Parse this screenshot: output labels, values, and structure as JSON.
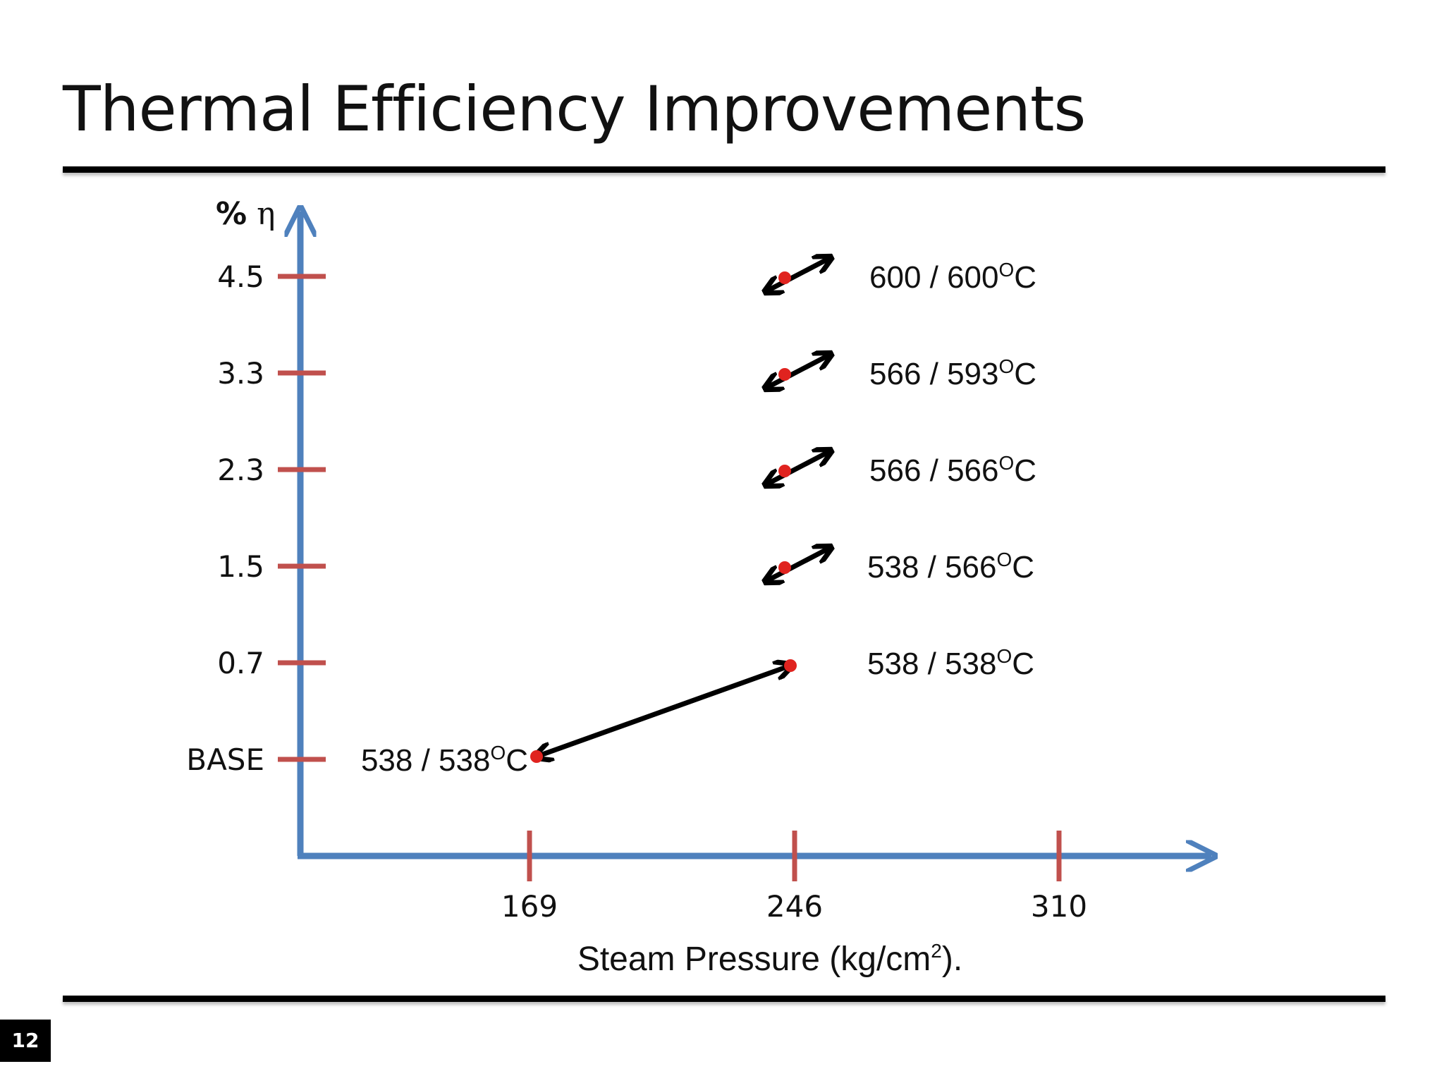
{
  "slide": {
    "title": "Thermal Efficiency Improvements",
    "page_number": "12"
  },
  "colors": {
    "axis": "#4f81bd",
    "tick": "#c0504d",
    "point": "#e0231f",
    "arrow": "#000000"
  },
  "chart_data": {
    "type": "scatter",
    "title": "Thermal Efficiency Improvements",
    "xlabel": "Steam Pressure (kg/cm2).",
    "xlabel_main": "Steam Pressure (kg/cm",
    "xlabel_sup": "2",
    "xlabel_tail": ").",
    "ylabel": "% η",
    "ylabel_pct": "%",
    "ylabel_symbol": "η",
    "x_ticks": [
      "169",
      "246",
      "310"
    ],
    "y_ticks": [
      "BASE",
      "0.7",
      "1.5",
      "2.3",
      "3.3",
      "4.5"
    ],
    "y_ticks_note": "categorical levels, evenly spaced",
    "points": [
      {
        "pressure": "169",
        "efficiency": "BASE",
        "label_main": "538 / 538",
        "label_sup": "O",
        "label_unit": "C",
        "label_side": "left",
        "arrow": "none"
      },
      {
        "pressure": "246",
        "efficiency": "0.7",
        "label_main": "538 / 538",
        "label_sup": "O",
        "label_unit": "C",
        "label_side": "right",
        "arrow": "none"
      },
      {
        "pressure": "246",
        "efficiency": "1.5",
        "label_main": "538 / 566",
        "label_sup": "O",
        "label_unit": "C",
        "label_side": "right",
        "arrow": "double"
      },
      {
        "pressure": "246",
        "efficiency": "2.3",
        "label_main": "566 / 566",
        "label_sup": "O",
        "label_unit": "C",
        "label_side": "right",
        "arrow": "double"
      },
      {
        "pressure": "246",
        "efficiency": "3.3",
        "label_main": "566 / 593",
        "label_sup": "O",
        "label_unit": "C",
        "label_side": "right",
        "arrow": "double"
      },
      {
        "pressure": "246",
        "efficiency": "4.5",
        "label_main": "600 / 600",
        "label_sup": "O",
        "label_unit": "C",
        "label_side": "right",
        "arrow": "double"
      }
    ],
    "connector": {
      "from": {
        "pressure": "169",
        "efficiency": "BASE"
      },
      "to": {
        "pressure": "246",
        "efficiency": "0.7"
      },
      "arrow": "double"
    }
  }
}
